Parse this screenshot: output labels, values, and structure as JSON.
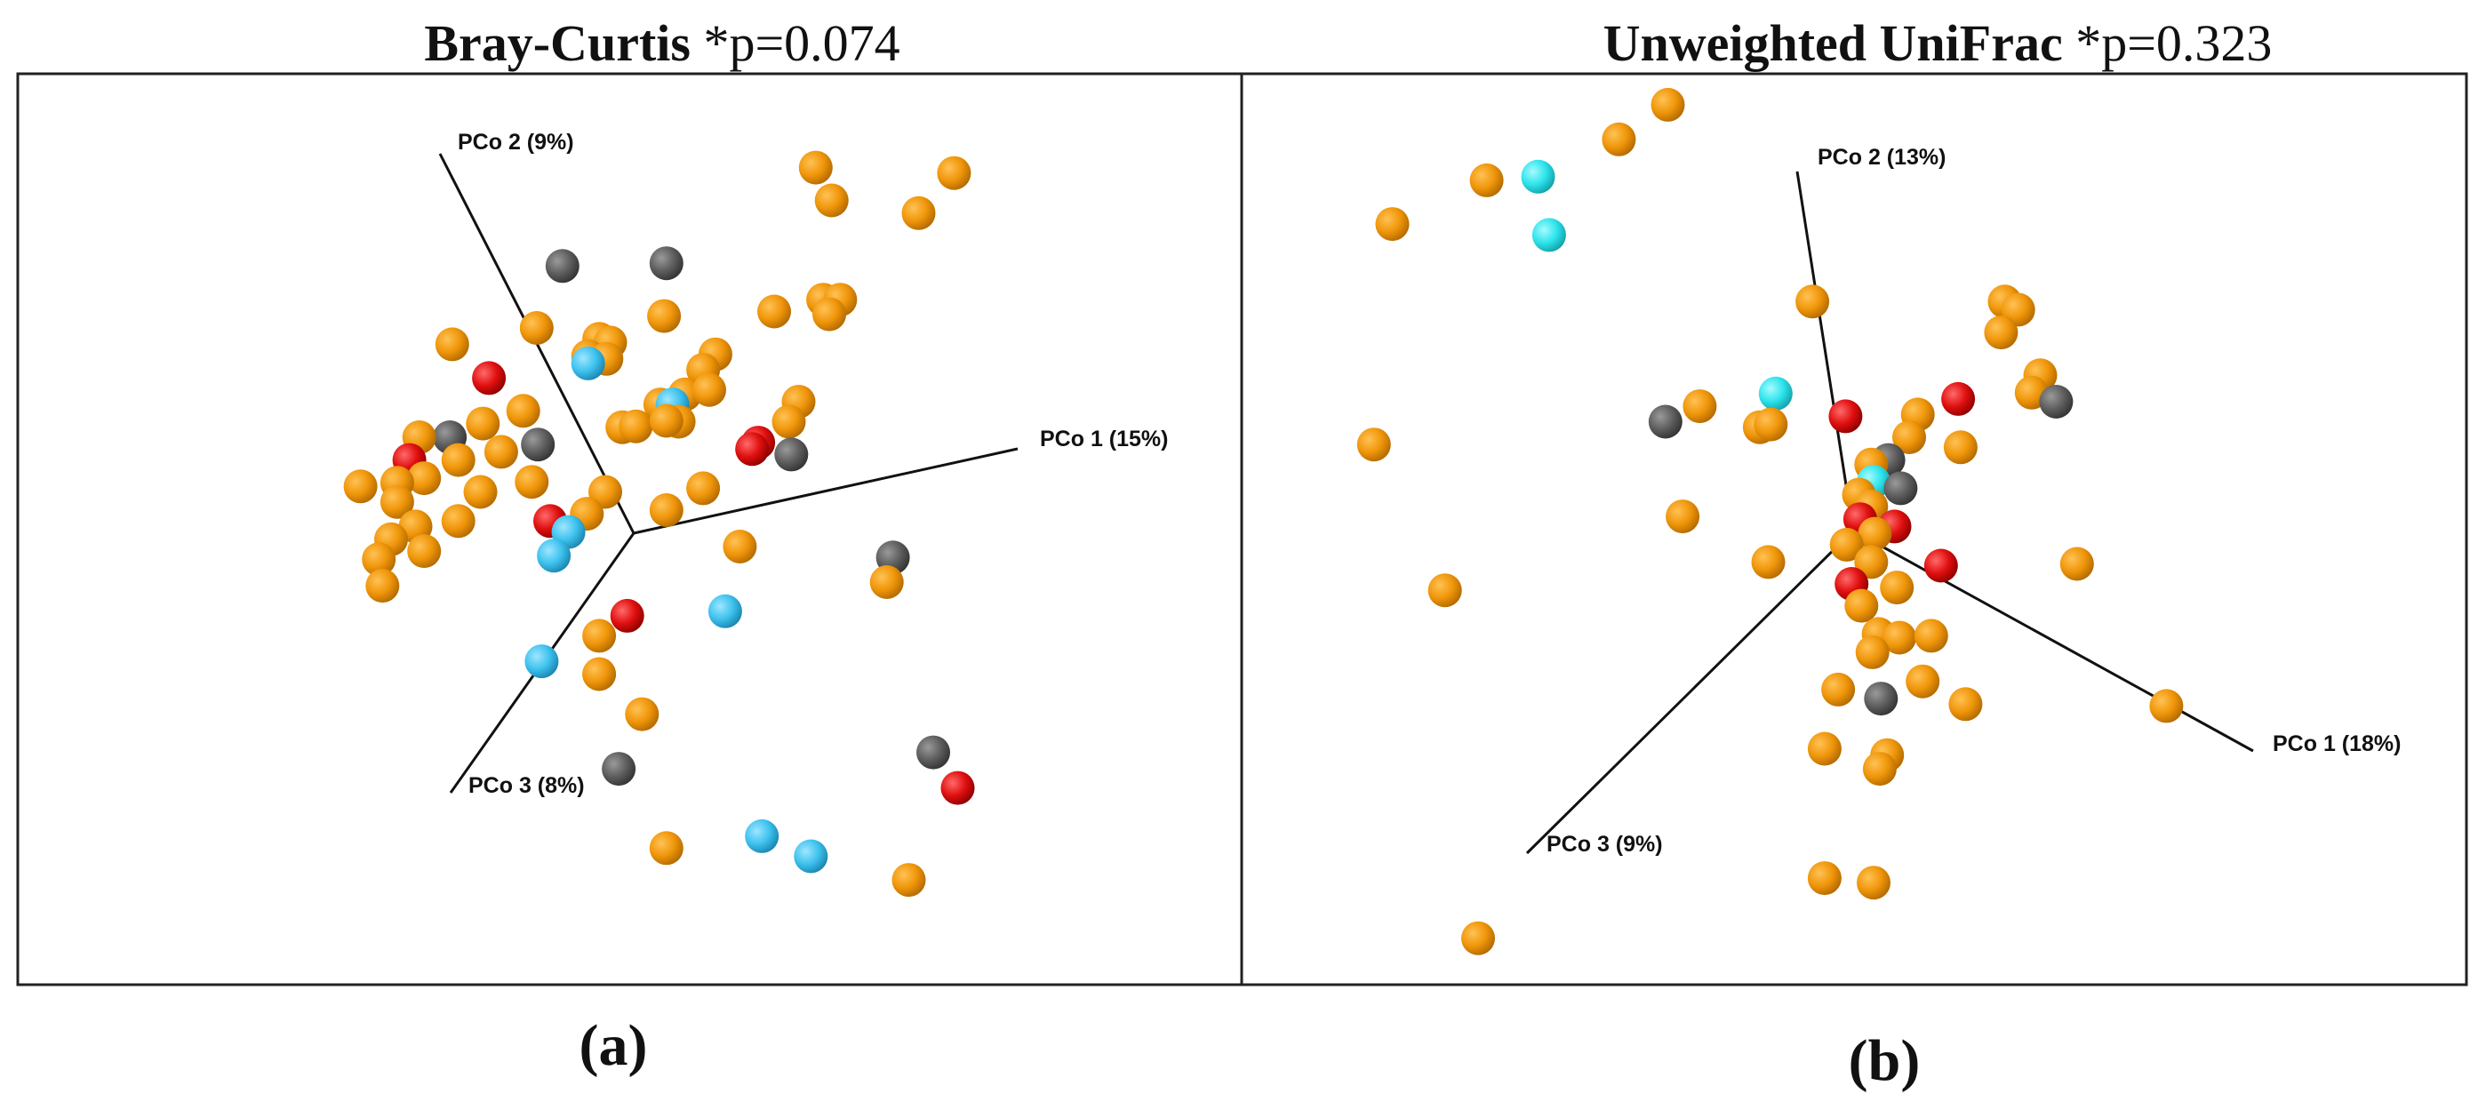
{
  "colors": {
    "orange": "#f0960a",
    "gray": "#5e5e5e",
    "red": "#e00f0f",
    "blue": "#3ec2ee",
    "cyan": "#2ee4ec"
  },
  "chart_data": [
    {
      "type": "scatter",
      "panel_label": "(a)",
      "title_metric": "Bray-Curtis",
      "title_stat": " *p=0.074",
      "axes": [
        {
          "label": "PCo 1 (15%)"
        },
        {
          "label": "PCo 2 (9%)"
        },
        {
          "label": "PCo 3 (8%)"
        }
      ],
      "projection": "3D PCoA (projected view)",
      "xlim": [
        0,
        100
      ],
      "ylim": [
        0,
        100
      ],
      "points": [
        {
          "x": 65.2,
          "y": 89.7,
          "c": "orange"
        },
        {
          "x": 76.5,
          "y": 89.1,
          "c": "orange"
        },
        {
          "x": 66.5,
          "y": 86.1,
          "c": "orange"
        },
        {
          "x": 73.6,
          "y": 84.7,
          "c": "orange"
        },
        {
          "x": 44.5,
          "y": 78.9,
          "c": "gray"
        },
        {
          "x": 53.0,
          "y": 79.2,
          "c": "gray"
        },
        {
          "x": 61.8,
          "y": 73.9,
          "c": "orange"
        },
        {
          "x": 65.8,
          "y": 75.2,
          "c": "orange"
        },
        {
          "x": 67.2,
          "y": 75.2,
          "c": "orange"
        },
        {
          "x": 66.3,
          "y": 73.6,
          "c": "orange"
        },
        {
          "x": 52.8,
          "y": 73.4,
          "c": "orange"
        },
        {
          "x": 42.4,
          "y": 72.1,
          "c": "orange"
        },
        {
          "x": 47.5,
          "y": 70.9,
          "c": "orange"
        },
        {
          "x": 48.4,
          "y": 70.5,
          "c": "orange"
        },
        {
          "x": 46.6,
          "y": 69.0,
          "c": "orange"
        },
        {
          "x": 48.1,
          "y": 68.7,
          "c": "orange"
        },
        {
          "x": 46.6,
          "y": 68.2,
          "c": "blue"
        },
        {
          "x": 57.0,
          "y": 69.2,
          "c": "orange"
        },
        {
          "x": 56.0,
          "y": 67.5,
          "c": "orange"
        },
        {
          "x": 35.5,
          "y": 70.3,
          "c": "orange"
        },
        {
          "x": 38.5,
          "y": 66.6,
          "c": "red"
        },
        {
          "x": 54.5,
          "y": 64.8,
          "c": "orange"
        },
        {
          "x": 56.5,
          "y": 65.3,
          "c": "orange"
        },
        {
          "x": 52.5,
          "y": 63.7,
          "c": "orange"
        },
        {
          "x": 53.5,
          "y": 63.7,
          "c": "blue"
        },
        {
          "x": 63.8,
          "y": 64.0,
          "c": "orange"
        },
        {
          "x": 63.0,
          "y": 61.8,
          "c": "orange"
        },
        {
          "x": 54.0,
          "y": 61.8,
          "c": "orange"
        },
        {
          "x": 49.4,
          "y": 61.2,
          "c": "orange"
        },
        {
          "x": 50.5,
          "y": 61.3,
          "c": "orange"
        },
        {
          "x": 53.0,
          "y": 61.9,
          "c": "orange"
        },
        {
          "x": 41.3,
          "y": 63.0,
          "c": "orange"
        },
        {
          "x": 38.0,
          "y": 61.6,
          "c": "orange"
        },
        {
          "x": 35.3,
          "y": 60.1,
          "c": "gray"
        },
        {
          "x": 32.8,
          "y": 60.1,
          "c": "orange"
        },
        {
          "x": 42.5,
          "y": 59.3,
          "c": "gray"
        },
        {
          "x": 39.5,
          "y": 58.5,
          "c": "orange"
        },
        {
          "x": 36.0,
          "y": 57.6,
          "c": "orange"
        },
        {
          "x": 32.0,
          "y": 57.6,
          "c": "red"
        },
        {
          "x": 60.5,
          "y": 59.5,
          "c": "red"
        },
        {
          "x": 60.0,
          "y": 58.8,
          "c": "red"
        },
        {
          "x": 63.2,
          "y": 58.2,
          "c": "gray"
        },
        {
          "x": 33.2,
          "y": 55.6,
          "c": "orange"
        },
        {
          "x": 31.0,
          "y": 55.1,
          "c": "orange"
        },
        {
          "x": 28.0,
          "y": 54.7,
          "c": "orange"
        },
        {
          "x": 37.8,
          "y": 54.1,
          "c": "orange"
        },
        {
          "x": 42.0,
          "y": 55.2,
          "c": "orange"
        },
        {
          "x": 48.0,
          "y": 54.1,
          "c": "orange"
        },
        {
          "x": 56.0,
          "y": 54.5,
          "c": "orange"
        },
        {
          "x": 46.5,
          "y": 51.7,
          "c": "orange"
        },
        {
          "x": 53.0,
          "y": 52.1,
          "c": "orange"
        },
        {
          "x": 31.0,
          "y": 53.0,
          "c": "orange"
        },
        {
          "x": 36.0,
          "y": 50.9,
          "c": "orange"
        },
        {
          "x": 43.5,
          "y": 50.9,
          "c": "red"
        },
        {
          "x": 45.0,
          "y": 49.7,
          "c": "blue"
        },
        {
          "x": 32.5,
          "y": 50.3,
          "c": "orange"
        },
        {
          "x": 30.5,
          "y": 48.9,
          "c": "orange"
        },
        {
          "x": 33.2,
          "y": 47.6,
          "c": "orange"
        },
        {
          "x": 59.0,
          "y": 48.1,
          "c": "orange"
        },
        {
          "x": 43.8,
          "y": 47.1,
          "c": "blue"
        },
        {
          "x": 71.5,
          "y": 46.9,
          "c": "gray"
        },
        {
          "x": 29.5,
          "y": 46.7,
          "c": "orange"
        },
        {
          "x": 71.0,
          "y": 44.2,
          "c": "orange"
        },
        {
          "x": 29.8,
          "y": 43.8,
          "c": "orange"
        },
        {
          "x": 57.8,
          "y": 41.0,
          "c": "blue"
        },
        {
          "x": 49.8,
          "y": 40.5,
          "c": "red"
        },
        {
          "x": 47.5,
          "y": 38.3,
          "c": "orange"
        },
        {
          "x": 42.8,
          "y": 35.5,
          "c": "blue"
        },
        {
          "x": 47.5,
          "y": 34.1,
          "c": "orange"
        },
        {
          "x": 51.0,
          "y": 29.7,
          "c": "orange"
        },
        {
          "x": 74.8,
          "y": 25.5,
          "c": "gray"
        },
        {
          "x": 49.1,
          "y": 23.7,
          "c": "gray"
        },
        {
          "x": 76.8,
          "y": 21.6,
          "c": "red"
        },
        {
          "x": 60.8,
          "y": 16.3,
          "c": "blue"
        },
        {
          "x": 53.0,
          "y": 15.0,
          "c": "orange"
        },
        {
          "x": 64.8,
          "y": 14.1,
          "c": "blue"
        },
        {
          "x": 72.8,
          "y": 11.5,
          "c": "orange"
        }
      ]
    },
    {
      "type": "scatter",
      "panel_label": "(b)",
      "title_metric": "Unweighted UniFrac",
      "title_stat": " *p=0.323",
      "axes": [
        {
          "label": "PCo 1 (18%)"
        },
        {
          "label": "PCo 2 (13%)"
        },
        {
          "label": "PCo 3 (9%)"
        }
      ],
      "projection": "3D PCoA (projected view)",
      "xlim": [
        0,
        100
      ],
      "ylim": [
        0,
        100
      ],
      "points": [
        {
          "x": 34.8,
          "y": 96.6,
          "c": "orange"
        },
        {
          "x": 30.8,
          "y": 92.8,
          "c": "orange"
        },
        {
          "x": 20.0,
          "y": 88.3,
          "c": "orange"
        },
        {
          "x": 24.2,
          "y": 88.7,
          "c": "cyan"
        },
        {
          "x": 12.3,
          "y": 83.5,
          "c": "orange"
        },
        {
          "x": 25.1,
          "y": 82.3,
          "c": "cyan"
        },
        {
          "x": 46.6,
          "y": 75.0,
          "c": "orange"
        },
        {
          "x": 62.3,
          "y": 75.0,
          "c": "orange"
        },
        {
          "x": 63.4,
          "y": 74.1,
          "c": "orange"
        },
        {
          "x": 62.0,
          "y": 71.6,
          "c": "orange"
        },
        {
          "x": 65.2,
          "y": 66.9,
          "c": "orange"
        },
        {
          "x": 43.6,
          "y": 64.9,
          "c": "cyan"
        },
        {
          "x": 58.5,
          "y": 64.3,
          "c": "red"
        },
        {
          "x": 64.5,
          "y": 65.0,
          "c": "orange"
        },
        {
          "x": 66.5,
          "y": 64.0,
          "c": "gray"
        },
        {
          "x": 37.4,
          "y": 63.5,
          "c": "orange"
        },
        {
          "x": 49.3,
          "y": 62.4,
          "c": "red"
        },
        {
          "x": 55.2,
          "y": 62.6,
          "c": "orange"
        },
        {
          "x": 34.6,
          "y": 61.8,
          "c": "gray"
        },
        {
          "x": 42.3,
          "y": 61.2,
          "c": "orange"
        },
        {
          "x": 43.2,
          "y": 61.5,
          "c": "orange"
        },
        {
          "x": 54.5,
          "y": 60.1,
          "c": "orange"
        },
        {
          "x": 10.8,
          "y": 59.3,
          "c": "orange"
        },
        {
          "x": 58.7,
          "y": 59.0,
          "c": "orange"
        },
        {
          "x": 52.8,
          "y": 57.6,
          "c": "gray"
        },
        {
          "x": 51.4,
          "y": 57.1,
          "c": "orange"
        },
        {
          "x": 51.6,
          "y": 55.2,
          "c": "cyan"
        },
        {
          "x": 53.8,
          "y": 54.5,
          "c": "gray"
        },
        {
          "x": 50.4,
          "y": 53.8,
          "c": "orange"
        },
        {
          "x": 51.4,
          "y": 52.5,
          "c": "orange"
        },
        {
          "x": 36.0,
          "y": 51.4,
          "c": "orange"
        },
        {
          "x": 50.5,
          "y": 51.1,
          "c": "red"
        },
        {
          "x": 53.3,
          "y": 50.3,
          "c": "red"
        },
        {
          "x": 51.7,
          "y": 49.5,
          "c": "orange"
        },
        {
          "x": 49.4,
          "y": 48.3,
          "c": "orange"
        },
        {
          "x": 43.0,
          "y": 46.4,
          "c": "orange"
        },
        {
          "x": 57.1,
          "y": 46.0,
          "c": "red"
        },
        {
          "x": 68.2,
          "y": 46.2,
          "c": "orange"
        },
        {
          "x": 51.4,
          "y": 46.4,
          "c": "orange"
        },
        {
          "x": 49.8,
          "y": 44.0,
          "c": "red"
        },
        {
          "x": 53.5,
          "y": 43.6,
          "c": "orange"
        },
        {
          "x": 16.6,
          "y": 43.3,
          "c": "orange"
        },
        {
          "x": 50.6,
          "y": 41.6,
          "c": "orange"
        },
        {
          "x": 52.0,
          "y": 38.5,
          "c": "orange"
        },
        {
          "x": 53.7,
          "y": 38.1,
          "c": "orange"
        },
        {
          "x": 56.3,
          "y": 38.3,
          "c": "orange"
        },
        {
          "x": 51.5,
          "y": 36.5,
          "c": "orange"
        },
        {
          "x": 55.6,
          "y": 33.3,
          "c": "orange"
        },
        {
          "x": 48.7,
          "y": 32.4,
          "c": "orange"
        },
        {
          "x": 52.2,
          "y": 31.4,
          "c": "gray"
        },
        {
          "x": 59.1,
          "y": 30.8,
          "c": "orange"
        },
        {
          "x": 75.5,
          "y": 30.6,
          "c": "orange"
        },
        {
          "x": 47.6,
          "y": 25.9,
          "c": "orange"
        },
        {
          "x": 52.7,
          "y": 25.2,
          "c": "orange"
        },
        {
          "x": 52.1,
          "y": 23.7,
          "c": "orange"
        },
        {
          "x": 47.6,
          "y": 11.7,
          "c": "orange"
        },
        {
          "x": 51.6,
          "y": 11.2,
          "c": "orange"
        },
        {
          "x": 19.3,
          "y": 5.1,
          "c": "orange"
        }
      ]
    }
  ]
}
